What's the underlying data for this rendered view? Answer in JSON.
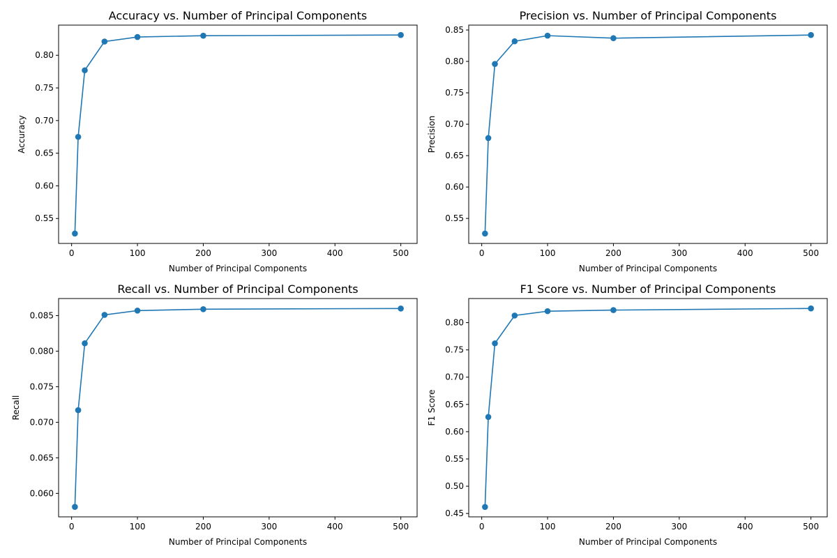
{
  "colors": {
    "series": "#1f77b4",
    "axis": "#000000",
    "background": "#ffffff"
  },
  "chart_data": [
    {
      "type": "line",
      "title": "Accuracy vs. Number of Principal Components",
      "xlabel": "Number of Principal Components",
      "ylabel": "Accuracy",
      "x": [
        5,
        10,
        20,
        50,
        100,
        200,
        500
      ],
      "values": [
        0.527,
        0.675,
        0.777,
        0.821,
        0.828,
        0.83,
        0.831
      ],
      "xlim": [
        -19.75,
        524.75
      ],
      "ylim": [
        0.5118,
        0.8462
      ],
      "xticks": [
        0,
        100,
        200,
        300,
        400,
        500
      ],
      "xtick_labels": [
        "0",
        "100",
        "200",
        "300",
        "400",
        "500"
      ],
      "yticks": [
        0.55,
        0.6,
        0.65,
        0.7,
        0.75,
        0.8
      ],
      "ytick_labels": [
        "0.55",
        "0.60",
        "0.65",
        "0.70",
        "0.75",
        "0.80"
      ],
      "grid": false,
      "markers": true
    },
    {
      "type": "line",
      "title": "Precision vs. Number of Principal Components",
      "xlabel": "Number of Principal Components",
      "ylabel": "Precision",
      "x": [
        5,
        10,
        20,
        50,
        100,
        200,
        500
      ],
      "values": [
        0.526,
        0.678,
        0.796,
        0.832,
        0.841,
        0.837,
        0.842
      ],
      "xlim": [
        -19.75,
        524.75
      ],
      "ylim": [
        0.5102,
        0.8578
      ],
      "xticks": [
        0,
        100,
        200,
        300,
        400,
        500
      ],
      "xtick_labels": [
        "0",
        "100",
        "200",
        "300",
        "400",
        "500"
      ],
      "yticks": [
        0.55,
        0.6,
        0.65,
        0.7,
        0.75,
        0.8,
        0.85
      ],
      "ytick_labels": [
        "0.55",
        "0.60",
        "0.65",
        "0.70",
        "0.75",
        "0.80",
        "0.85"
      ],
      "grid": false,
      "markers": true
    },
    {
      "type": "line",
      "title": "Recall vs. Number of Principal Components",
      "xlabel": "Number of Principal Components",
      "ylabel": "Recall",
      "x": [
        5,
        10,
        20,
        50,
        100,
        200,
        500
      ],
      "values": [
        0.0581,
        0.0717,
        0.0811,
        0.0851,
        0.0857,
        0.0859,
        0.086
      ],
      "xlim": [
        -19.75,
        524.75
      ],
      "ylim": [
        0.0567,
        0.0874
      ],
      "xticks": [
        0,
        100,
        200,
        300,
        400,
        500
      ],
      "xtick_labels": [
        "0",
        "100",
        "200",
        "300",
        "400",
        "500"
      ],
      "yticks": [
        0.06,
        0.065,
        0.07,
        0.075,
        0.08,
        0.085
      ],
      "ytick_labels": [
        "0.060",
        "0.065",
        "0.070",
        "0.075",
        "0.080",
        "0.085"
      ],
      "grid": false,
      "markers": true
    },
    {
      "type": "line",
      "title": "F1 Score vs. Number of Principal Components",
      "xlabel": "Number of Principal Components",
      "ylabel": "F1 Score",
      "x": [
        5,
        10,
        20,
        50,
        100,
        200,
        500
      ],
      "values": [
        0.462,
        0.627,
        0.762,
        0.813,
        0.821,
        0.823,
        0.826
      ],
      "xlim": [
        -19.75,
        524.75
      ],
      "ylim": [
        0.4438,
        0.8442
      ],
      "xticks": [
        0,
        100,
        200,
        300,
        400,
        500
      ],
      "xtick_labels": [
        "0",
        "100",
        "200",
        "300",
        "400",
        "500"
      ],
      "yticks": [
        0.45,
        0.5,
        0.55,
        0.6,
        0.65,
        0.7,
        0.75,
        0.8
      ],
      "ytick_labels": [
        "0.45",
        "0.50",
        "0.55",
        "0.60",
        "0.65",
        "0.70",
        "0.75",
        "0.80"
      ],
      "grid": false,
      "markers": true
    }
  ]
}
